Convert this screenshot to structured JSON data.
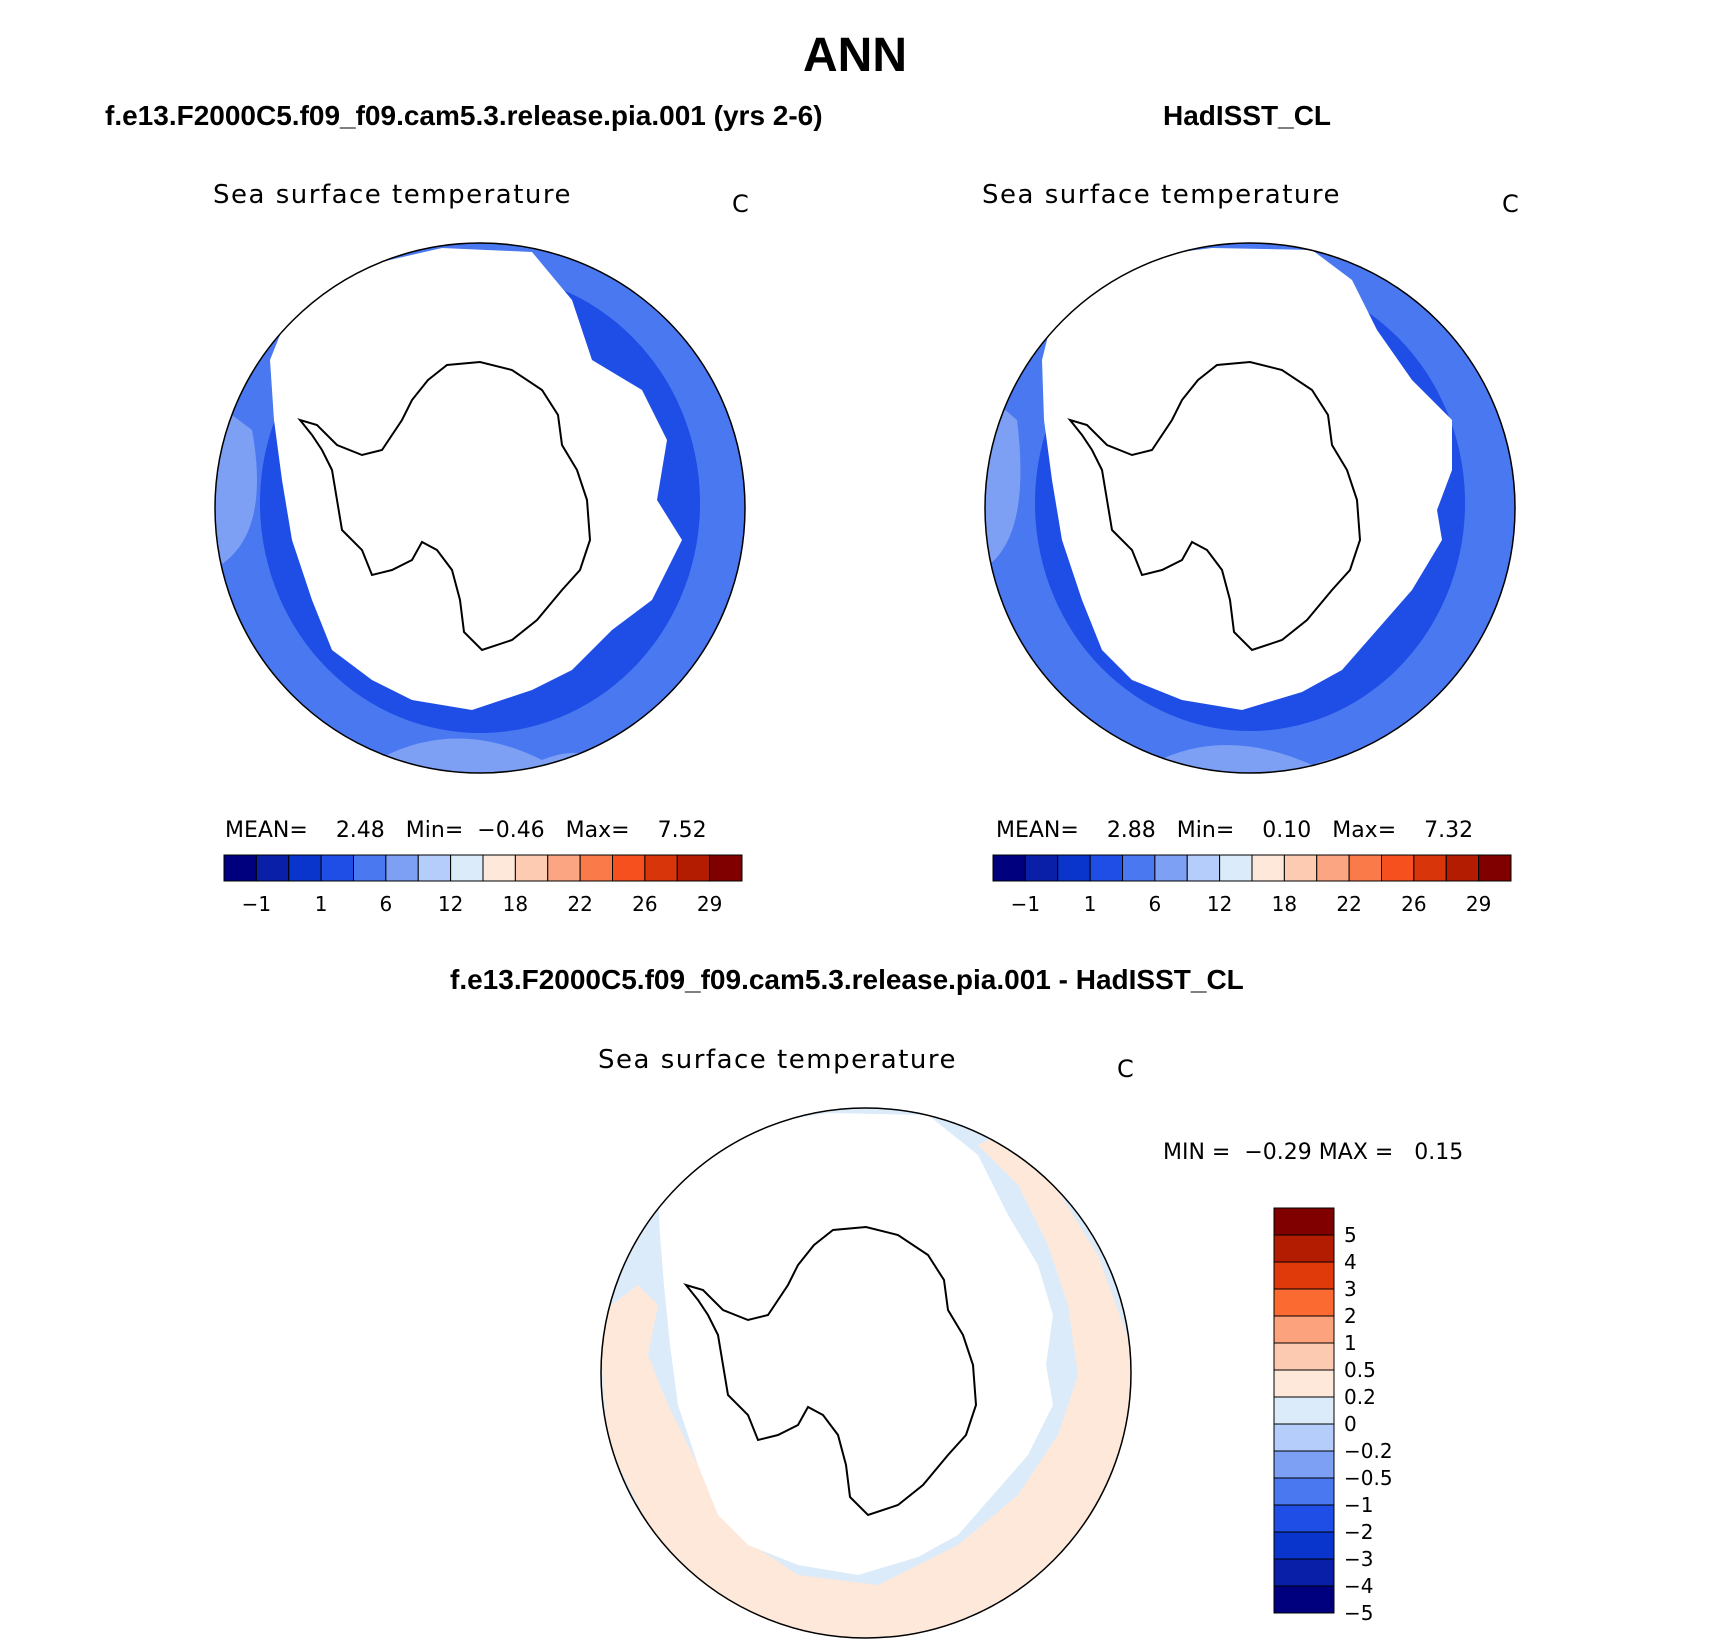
{
  "season_title": "ANN",
  "panels": [
    {
      "case_title": "f.e13.F2000C5.f09_f09.cam5.3.release.pia.001 (yrs 2-6)",
      "var_name": "Sea surface temperature",
      "units": "C",
      "stats": {
        "mean_label": "MEAN=",
        "mean": "2.48",
        "min_label": "Min=",
        "min": "−0.46",
        "max_label": "Max=",
        "max": "7.52"
      }
    },
    {
      "case_title": "HadISST_CL",
      "var_name": "Sea surface temperature",
      "units": "C",
      "stats": {
        "mean_label": "MEAN=",
        "mean": "2.88",
        "min_label": "Min=",
        "min": "0.10",
        "max_label": "Max=",
        "max": "7.32"
      }
    },
    {
      "case_title": "f.e13.F2000C5.f09_f09.cam5.3.release.pia.001 - HadISST_CL",
      "var_name": "Sea surface temperature",
      "units": "C",
      "stats": {
        "min_label": "MIN =",
        "min": "−0.29",
        "max_label": "MAX =",
        "max": "0.15"
      }
    }
  ],
  "colorbar_abs": {
    "colors": [
      "#00007f",
      "#0a1fa8",
      "#0a35cc",
      "#1f4ee6",
      "#4a78f0",
      "#7da0f5",
      "#b4cdfa",
      "#dcebfa",
      "#fde8da",
      "#fccbb2",
      "#fba582",
      "#fb7a4a",
      "#f5501e",
      "#d8350a",
      "#b31c00",
      "#800000"
    ],
    "tick_labels": [
      "−1",
      "1",
      "6",
      "12",
      "18",
      "22",
      "26",
      "29"
    ]
  },
  "colorbar_diff": {
    "colors_top_to_bottom": [
      "#800000",
      "#b31c00",
      "#e0390a",
      "#fb6a30",
      "#fca27c",
      "#fccab0",
      "#fde8da",
      "#dcebfa",
      "#b4cdfa",
      "#7da0f5",
      "#4a78f0",
      "#1f4ee6",
      "#0a35cc",
      "#0a1fa8",
      "#00007f"
    ],
    "tick_labels_top_to_bottom": [
      "5",
      "4",
      "3",
      "2",
      "1",
      "0.5",
      "0.2",
      "0",
      "−0.2",
      "−0.5",
      "−1",
      "−2",
      "−3",
      "−4",
      "−5"
    ]
  }
}
